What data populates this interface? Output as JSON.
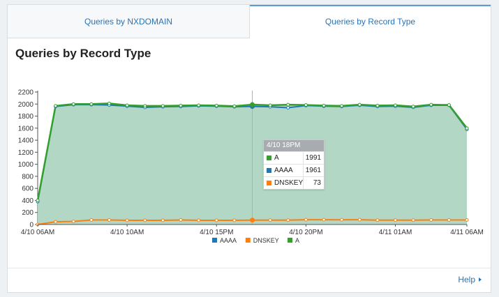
{
  "tabs": [
    {
      "label": "Queries by NXDOMAIN",
      "active": false
    },
    {
      "label": "Queries by Record Type",
      "active": true
    }
  ],
  "panel_title": "Queries by Record Type",
  "help_label": "Help",
  "tooltip": {
    "header": "4/10 18PM",
    "rows": [
      {
        "name": "A",
        "value": "1991",
        "color": "#33a02c"
      },
      {
        "name": "AAAA",
        "value": "1961",
        "color": "#1f78b4"
      },
      {
        "name": "DNSKEY",
        "value": "73",
        "color": "#ff7f0e"
      }
    ]
  },
  "chart_data": {
    "type": "area",
    "ylim": [
      0,
      2200
    ],
    "yticks": [
      0,
      200,
      400,
      600,
      800,
      1000,
      1200,
      1400,
      1600,
      1800,
      2000,
      2200
    ],
    "x_count": 25,
    "x_ticks": [
      {
        "index": 0,
        "label": "4/10 06AM"
      },
      {
        "index": 5,
        "label": "4/10 10AM"
      },
      {
        "index": 10,
        "label": "4/10 15PM"
      },
      {
        "index": 15,
        "label": "4/10 20PM"
      },
      {
        "index": 20,
        "label": "4/11 01AM"
      },
      {
        "index": 24,
        "label": "4/11 06AM"
      }
    ],
    "hover_index": 12,
    "legend": [
      "AAAA",
      "DNSKEY",
      "A"
    ],
    "series": [
      {
        "name": "AAAA",
        "color": "#1f78b4",
        "values": [
          380,
          1960,
          1990,
          1990,
          1985,
          1965,
          1945,
          1955,
          1960,
          1970,
          1965,
          1955,
          1961,
          1955,
          1940,
          1975,
          1965,
          1960,
          1980,
          1960,
          1965,
          1945,
          1980,
          1980,
          1580
        ]
      },
      {
        "name": "DNSKEY",
        "color": "#ff7f0e",
        "values": [
          0,
          45,
          50,
          75,
          75,
          70,
          70,
          70,
          75,
          70,
          70,
          70,
          73,
          72,
          72,
          80,
          80,
          78,
          80,
          72,
          72,
          72,
          75,
          75,
          75
        ]
      },
      {
        "name": "A",
        "color": "#33a02c",
        "values": [
          400,
          1970,
          2000,
          2000,
          2010,
          1980,
          1970,
          1970,
          1975,
          1980,
          1975,
          1965,
          1991,
          1980,
          1990,
          1985,
          1975,
          1970,
          1990,
          1975,
          1980,
          1960,
          1990,
          1985,
          1600
        ]
      }
    ]
  }
}
